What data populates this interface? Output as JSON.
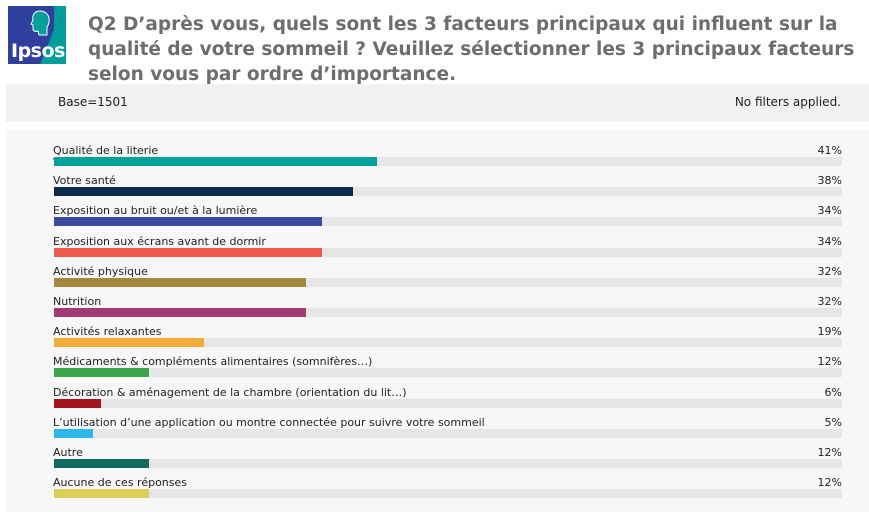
{
  "logo": {
    "text": "Ipsos"
  },
  "question": "Q2 D’après vous, quels sont les 3 facteurs principaux qui influent sur la qualité de votre sommeil ? Veuillez sélectionner les 3 principaux facteurs selon vous par ordre d’importance.",
  "base": {
    "left": "Base=1501",
    "right": "No filters applied."
  },
  "chart_data": {
    "type": "bar",
    "orientation": "horizontal",
    "xlim": [
      0,
      100
    ],
    "categories": [
      "Qualité de la literie",
      "Votre santé",
      "Exposition au bruit ou/et à la lumière",
      "Exposition aux écrans avant de dormir",
      "Activité physique",
      "Nutrition",
      "Activités relaxantes",
      "Médicaments & compléments alimentaires (somnifères…)",
      "Décoration & aménagement de la chambre (orientation du lit…)",
      "L’utilisation d’une application ou montre connectée pour suivre votre sommeil",
      "Autre",
      "Aucune de ces réponses"
    ],
    "values": [
      41,
      38,
      34,
      34,
      32,
      32,
      19,
      12,
      6,
      5,
      12,
      12
    ],
    "value_labels": [
      "41%",
      "38%",
      "34%",
      "34%",
      "32%",
      "32%",
      "19%",
      "12%",
      "6%",
      "5%",
      "12%",
      "12%"
    ],
    "colors": [
      "#00a19a",
      "#0d2a4d",
      "#3b4a9e",
      "#ec5b4a",
      "#a5893e",
      "#a23a73",
      "#f2ab35",
      "#3aa54a",
      "#a3141e",
      "#2bb8e9",
      "#0f6c5e",
      "#dccf56"
    ]
  }
}
